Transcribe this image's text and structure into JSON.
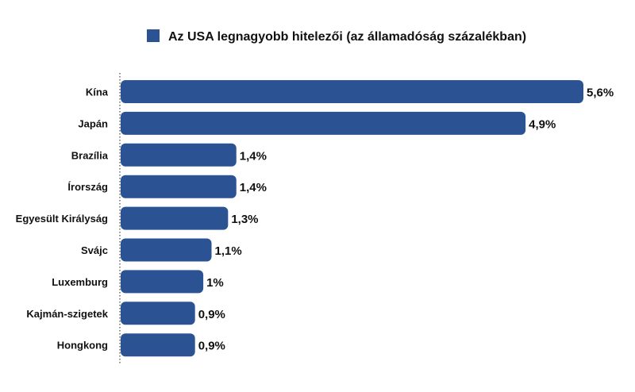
{
  "chart_data": {
    "type": "bar",
    "orientation": "horizontal",
    "categories": [
      "Kína",
      "Japán",
      "Brazília",
      "Írország",
      "Egyesült Királyság",
      "Svájc",
      "Luxemburg",
      "Kajmán-szigetek",
      "Hongkong"
    ],
    "series": [
      {
        "name": "Az USA legnagyobb hitelezői (az államadóság százalékban)",
        "values": [
          5.6,
          4.9,
          1.4,
          1.4,
          1.3,
          1.1,
          1.0,
          0.9,
          0.9
        ],
        "value_labels": [
          "5,6%",
          "4,9%",
          "1,4%",
          "1,4%",
          "1,3%",
          "1,1%",
          "1%",
          "0,9%",
          "0,9%"
        ],
        "color": "#2b5393"
      }
    ],
    "xlim": [
      0,
      5.6
    ],
    "legend": "top-center",
    "grid": false,
    "baseline_style": "dotted"
  }
}
